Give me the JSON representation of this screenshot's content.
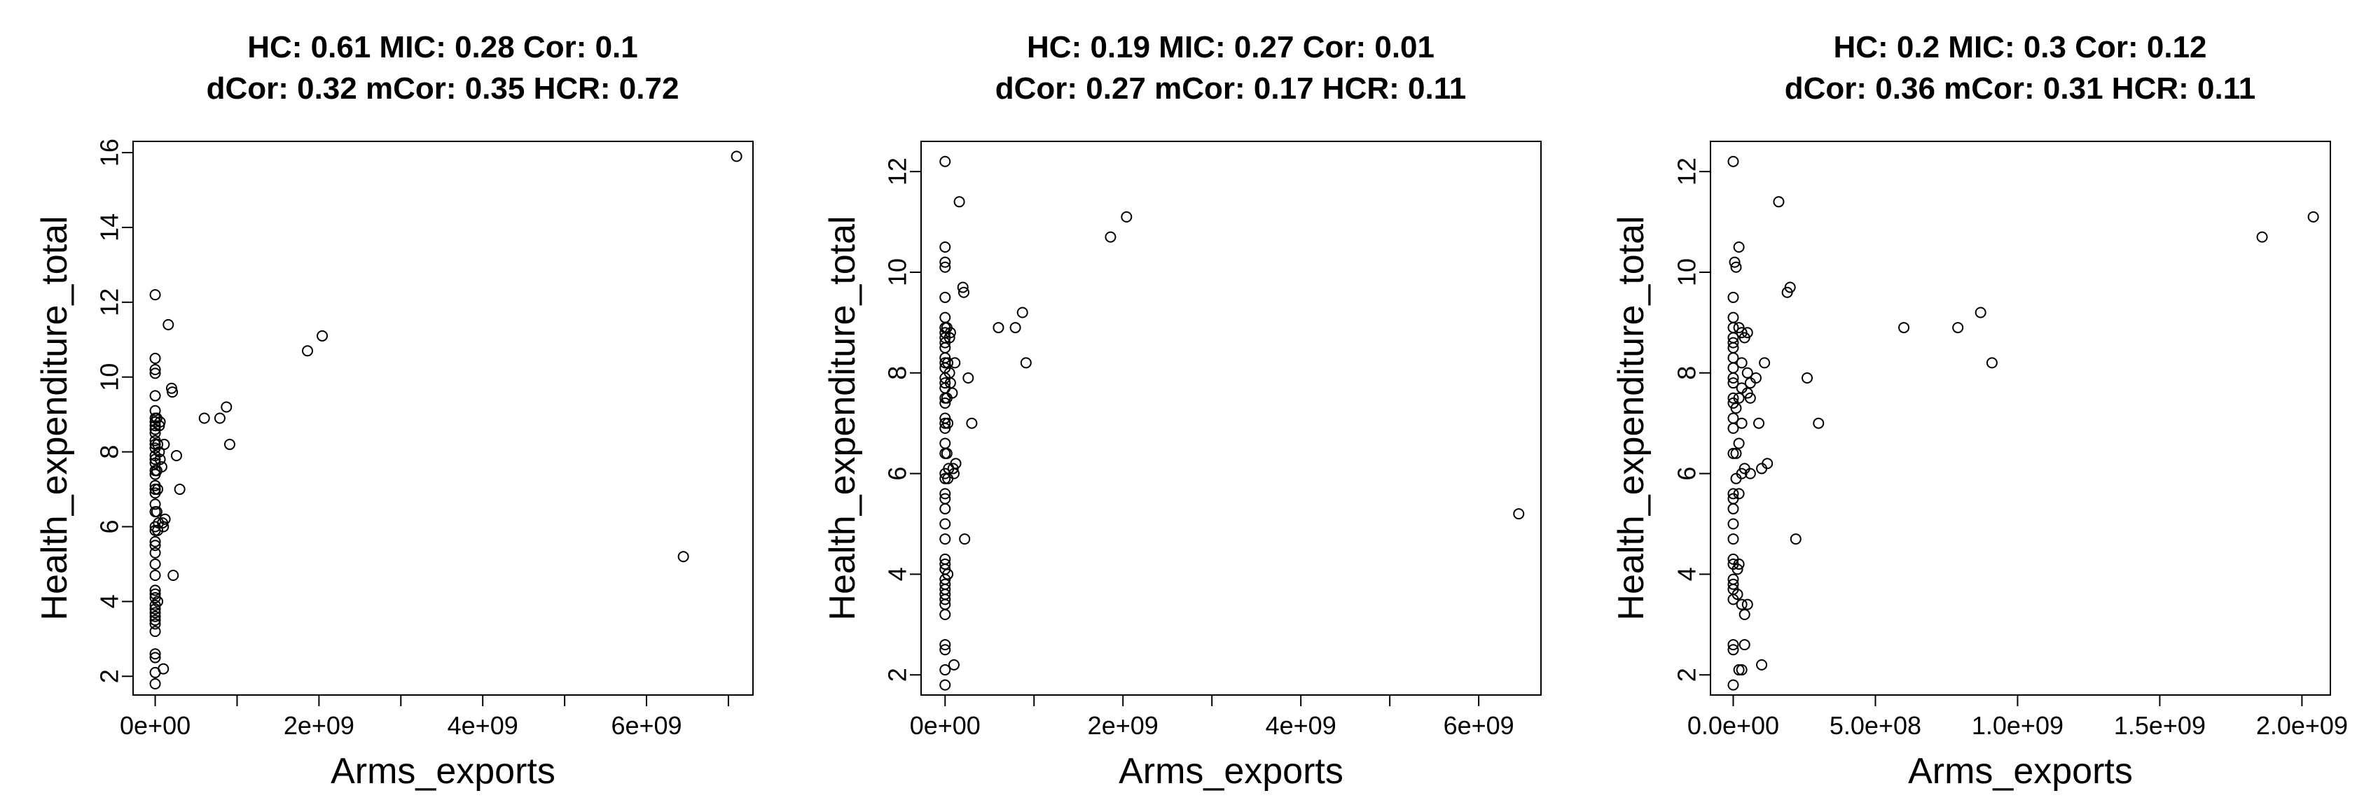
{
  "chart_data": [
    {
      "type": "scatter",
      "title_line1": "HC: 0.61  MIC: 0.28 Cor: 0.1",
      "title_line2": "dCor: 0.32  mCor: 0.35 HCR: 0.72",
      "xlabel": "Arms_exports",
      "ylabel": "Health_expenditure_total",
      "xlim": [
        -270000000.0,
        7300000000.0
      ],
      "ylim": [
        1.5,
        16.3
      ],
      "xticks": [
        0,
        2000000000.0,
        4000000000.0,
        6000000000.0
      ],
      "xticklabels": [
        "0e+00",
        "2e+09",
        "4e+09",
        "6e+09"
      ],
      "xminor": [
        1000000000.0,
        3000000000.0,
        5000000000.0,
        7000000000.0
      ],
      "yticks": [
        2,
        4,
        6,
        8,
        10,
        12,
        14,
        16
      ],
      "yticklabels": [
        "2",
        "4",
        "6",
        "8",
        "10",
        "12",
        "14",
        "16"
      ],
      "points": [
        [
          0,
          12.2
        ],
        [
          0,
          10.5
        ],
        [
          0,
          10.2
        ],
        [
          0,
          10.1
        ],
        [
          0,
          9.5
        ],
        [
          0,
          9.1
        ],
        [
          0,
          8.9
        ],
        [
          0,
          8.8
        ],
        [
          0,
          8.7
        ],
        [
          0,
          8.6
        ],
        [
          0,
          8.5
        ],
        [
          0,
          8.3
        ],
        [
          0,
          8.2
        ],
        [
          0,
          8.1
        ],
        [
          0,
          7.9
        ],
        [
          0,
          7.8
        ],
        [
          0,
          7.7
        ],
        [
          0,
          7.5
        ],
        [
          0,
          7.4
        ],
        [
          0,
          7.1
        ],
        [
          0,
          7.0
        ],
        [
          0,
          6.9
        ],
        [
          0,
          6.6
        ],
        [
          0,
          6.4
        ],
        [
          0,
          6.0
        ],
        [
          0,
          5.9
        ],
        [
          0,
          5.6
        ],
        [
          0,
          5.5
        ],
        [
          0,
          5.3
        ],
        [
          0,
          5.0
        ],
        [
          0,
          4.7
        ],
        [
          0,
          4.3
        ],
        [
          0,
          4.2
        ],
        [
          0,
          4.1
        ],
        [
          0,
          3.9
        ],
        [
          0,
          3.8
        ],
        [
          0,
          3.7
        ],
        [
          0,
          3.6
        ],
        [
          0,
          3.5
        ],
        [
          0,
          3.4
        ],
        [
          0,
          3.2
        ],
        [
          0,
          2.6
        ],
        [
          0,
          2.5
        ],
        [
          0,
          2.1
        ],
        [
          0,
          1.8
        ],
        [
          20000000.0,
          8.9
        ],
        [
          30000000.0,
          8.2
        ],
        [
          20000000.0,
          7.5
        ],
        [
          30000000.0,
          7.0
        ],
        [
          40000000.0,
          6.1
        ],
        [
          30000000.0,
          5.9
        ],
        [
          20000000.0,
          6.4
        ],
        [
          30000000.0,
          4.0
        ],
        [
          100000000.0,
          2.2
        ],
        [
          60000000.0,
          8.8
        ],
        [
          50000000.0,
          8.7
        ],
        [
          50000000.0,
          8.0
        ],
        [
          60000000.0,
          7.8
        ],
        [
          80000000.0,
          7.6
        ],
        [
          90000000.0,
          6.1
        ],
        [
          100000000.0,
          6.0
        ],
        [
          120000000.0,
          6.2
        ],
        [
          110000000.0,
          8.2
        ],
        [
          160000000.0,
          11.4
        ],
        [
          200000000.0,
          9.7
        ],
        [
          210000000.0,
          9.6
        ],
        [
          220000000.0,
          4.7
        ],
        [
          260000000.0,
          7.9
        ],
        [
          300000000.0,
          7.0
        ],
        [
          600000000.0,
          8.9
        ],
        [
          790000000.0,
          8.9
        ],
        [
          870000000.0,
          9.2
        ],
        [
          910000000.0,
          8.2
        ],
        [
          1860000000.0,
          10.7
        ],
        [
          2040000000.0,
          11.1
        ],
        [
          6450000000.0,
          5.2
        ],
        [
          7100000000.0,
          15.9
        ]
      ]
    },
    {
      "type": "scatter",
      "title_line1": "HC: 0.19  MIC: 0.27 Cor: 0.01",
      "title_line2": "dCor: 0.27  mCor: 0.17 HCR: 0.11",
      "xlabel": "Arms_exports",
      "ylabel": "Health_expenditure_total",
      "xlim": [
        -270000000.0,
        6700000000.0
      ],
      "ylim": [
        1.6,
        12.6
      ],
      "xticks": [
        0,
        2000000000.0,
        4000000000.0,
        6000000000.0
      ],
      "xticklabels": [
        "0e+00",
        "2e+09",
        "4e+09",
        "6e+09"
      ],
      "xminor": [
        1000000000.0,
        3000000000.0,
        5000000000.0
      ],
      "yticks": [
        2,
        4,
        6,
        8,
        10,
        12
      ],
      "yticklabels": [
        "2",
        "4",
        "6",
        "8",
        "10",
        "12"
      ],
      "points": [
        [
          0,
          12.2
        ],
        [
          0,
          10.5
        ],
        [
          0,
          10.2
        ],
        [
          0,
          10.1
        ],
        [
          0,
          9.5
        ],
        [
          0,
          9.1
        ],
        [
          0,
          8.9
        ],
        [
          0,
          8.8
        ],
        [
          0,
          8.7
        ],
        [
          0,
          8.6
        ],
        [
          0,
          8.5
        ],
        [
          0,
          8.3
        ],
        [
          0,
          8.2
        ],
        [
          0,
          8.1
        ],
        [
          0,
          7.9
        ],
        [
          0,
          7.8
        ],
        [
          0,
          7.7
        ],
        [
          0,
          7.5
        ],
        [
          0,
          7.4
        ],
        [
          0,
          7.1
        ],
        [
          0,
          7.0
        ],
        [
          0,
          6.9
        ],
        [
          0,
          6.6
        ],
        [
          0,
          6.4
        ],
        [
          0,
          6.0
        ],
        [
          0,
          5.9
        ],
        [
          0,
          5.6
        ],
        [
          0,
          5.5
        ],
        [
          0,
          5.3
        ],
        [
          0,
          5.0
        ],
        [
          0,
          4.7
        ],
        [
          0,
          4.3
        ],
        [
          0,
          4.2
        ],
        [
          0,
          4.1
        ],
        [
          0,
          3.9
        ],
        [
          0,
          3.8
        ],
        [
          0,
          3.7
        ],
        [
          0,
          3.6
        ],
        [
          0,
          3.5
        ],
        [
          0,
          3.4
        ],
        [
          0,
          3.2
        ],
        [
          0,
          2.6
        ],
        [
          0,
          2.5
        ],
        [
          0,
          2.1
        ],
        [
          0,
          1.8
        ],
        [
          20000000.0,
          8.9
        ],
        [
          30000000.0,
          8.2
        ],
        [
          20000000.0,
          7.5
        ],
        [
          30000000.0,
          7.0
        ],
        [
          40000000.0,
          6.1
        ],
        [
          30000000.0,
          5.9
        ],
        [
          20000000.0,
          6.4
        ],
        [
          30000000.0,
          4.0
        ],
        [
          100000000.0,
          2.2
        ],
        [
          60000000.0,
          8.8
        ],
        [
          50000000.0,
          8.7
        ],
        [
          50000000.0,
          8.0
        ],
        [
          60000000.0,
          7.8
        ],
        [
          80000000.0,
          7.6
        ],
        [
          90000000.0,
          6.1
        ],
        [
          100000000.0,
          6.0
        ],
        [
          120000000.0,
          6.2
        ],
        [
          110000000.0,
          8.2
        ],
        [
          160000000.0,
          11.4
        ],
        [
          200000000.0,
          9.7
        ],
        [
          210000000.0,
          9.6
        ],
        [
          220000000.0,
          4.7
        ],
        [
          260000000.0,
          7.9
        ],
        [
          300000000.0,
          7.0
        ],
        [
          600000000.0,
          8.9
        ],
        [
          790000000.0,
          8.9
        ],
        [
          870000000.0,
          9.2
        ],
        [
          910000000.0,
          8.2
        ],
        [
          1860000000.0,
          10.7
        ],
        [
          2040000000.0,
          11.1
        ],
        [
          6450000000.0,
          5.2
        ]
      ]
    },
    {
      "type": "scatter",
      "title_line1": "HC: 0.2  MIC: 0.3 Cor: 0.12",
      "title_line2": "dCor: 0.36  mCor: 0.31 HCR: 0.11",
      "xlabel": "Arms_exports",
      "ylabel": "Health_expenditure_total",
      "xlim": [
        -80000000.0,
        2100000000.0
      ],
      "ylim": [
        1.6,
        12.6
      ],
      "xticks": [
        0,
        500000000.0,
        1000000000.0,
        1500000000.0,
        2000000000.0
      ],
      "xticklabels": [
        "0.0e+00",
        "5.0e+08",
        "1.0e+09",
        "1.5e+09",
        "2.0e+09"
      ],
      "xminor": [],
      "yticks": [
        2,
        4,
        6,
        8,
        10,
        12
      ],
      "yticklabels": [
        "2",
        "4",
        "6",
        "8",
        "10",
        "12"
      ],
      "points": [
        [
          0,
          12.2
        ],
        [
          0,
          9.5
        ],
        [
          0,
          9.1
        ],
        [
          0,
          8.9
        ],
        [
          0,
          8.7
        ],
        [
          0,
          8.6
        ],
        [
          0,
          8.5
        ],
        [
          0,
          8.3
        ],
        [
          0,
          8.1
        ],
        [
          0,
          7.9
        ],
        [
          0,
          7.8
        ],
        [
          0,
          7.5
        ],
        [
          0,
          7.4
        ],
        [
          0,
          7.1
        ],
        [
          0,
          6.9
        ],
        [
          0,
          6.4
        ],
        [
          0,
          5.6
        ],
        [
          0,
          5.5
        ],
        [
          0,
          5.3
        ],
        [
          0,
          5.0
        ],
        [
          0,
          4.7
        ],
        [
          0,
          4.3
        ],
        [
          0,
          4.2
        ],
        [
          0,
          3.9
        ],
        [
          0,
          3.8
        ],
        [
          0,
          3.7
        ],
        [
          0,
          3.5
        ],
        [
          0,
          2.6
        ],
        [
          0,
          2.5
        ],
        [
          0,
          1.8
        ],
        [
          5000000.0,
          10.2
        ],
        [
          10000000.0,
          10.1
        ],
        [
          10000000.0,
          7.3
        ],
        [
          10000000.0,
          6.4
        ],
        [
          10000000.0,
          5.9
        ],
        [
          15000000.0,
          4.1
        ],
        [
          15000000.0,
          3.6
        ],
        [
          20000000.0,
          10.5
        ],
        [
          20000000.0,
          8.9
        ],
        [
          20000000.0,
          7.5
        ],
        [
          20000000.0,
          6.6
        ],
        [
          20000000.0,
          5.6
        ],
        [
          20000000.0,
          4.2
        ],
        [
          20000000.0,
          2.1
        ],
        [
          30000000.0,
          8.8
        ],
        [
          30000000.0,
          8.2
        ],
        [
          30000000.0,
          7.7
        ],
        [
          30000000.0,
          7.0
        ],
        [
          30000000.0,
          6.0
        ],
        [
          30000000.0,
          3.4
        ],
        [
          30000000.0,
          2.1
        ],
        [
          40000000.0,
          8.7
        ],
        [
          40000000.0,
          6.1
        ],
        [
          40000000.0,
          3.2
        ],
        [
          40000000.0,
          2.6
        ],
        [
          50000000.0,
          8.8
        ],
        [
          50000000.0,
          8.0
        ],
        [
          50000000.0,
          7.6
        ],
        [
          50000000.0,
          3.4
        ],
        [
          60000000.0,
          7.8
        ],
        [
          60000000.0,
          7.5
        ],
        [
          60000000.0,
          6.0
        ],
        [
          80000000.0,
          7.9
        ],
        [
          90000000.0,
          7.0
        ],
        [
          100000000.0,
          2.2
        ],
        [
          100000000.0,
          6.1
        ],
        [
          110000000.0,
          8.2
        ],
        [
          120000000.0,
          6.2
        ],
        [
          160000000.0,
          11.4
        ],
        [
          190000000.0,
          9.6
        ],
        [
          200000000.0,
          9.7
        ],
        [
          220000000.0,
          4.7
        ],
        [
          260000000.0,
          7.9
        ],
        [
          300000000.0,
          7.0
        ],
        [
          600000000.0,
          8.9
        ],
        [
          790000000.0,
          8.9
        ],
        [
          870000000.0,
          9.2
        ],
        [
          910000000.0,
          8.2
        ],
        [
          1860000000.0,
          10.7
        ],
        [
          2040000000.0,
          11.1
        ]
      ]
    }
  ]
}
